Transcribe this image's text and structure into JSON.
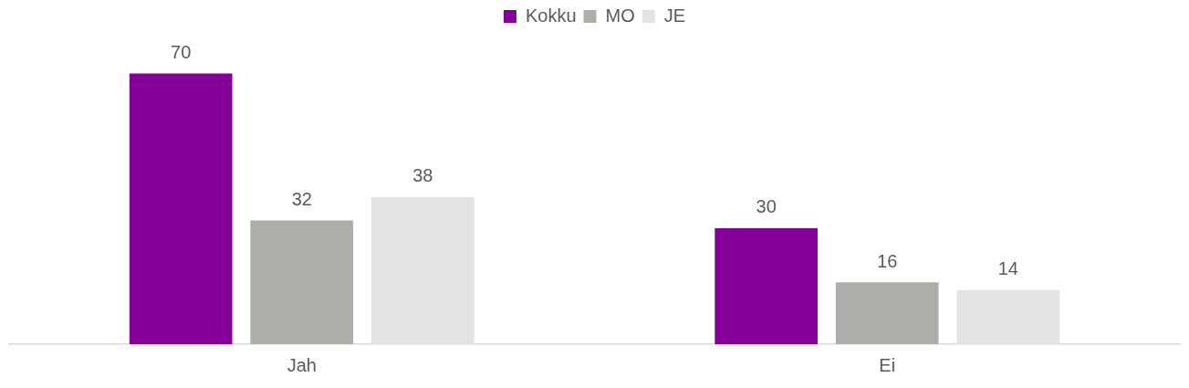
{
  "chart_data": {
    "type": "bar",
    "categories": [
      "Jah",
      "Ei"
    ],
    "series": [
      {
        "name": "Kokku",
        "color": "#850099",
        "values": [
          70,
          30
        ]
      },
      {
        "name": "MO",
        "color": "#adadab",
        "values": [
          32,
          16
        ]
      },
      {
        "name": "JE",
        "color": "#e3e3e3",
        "values": [
          38,
          14
        ]
      }
    ],
    "data_labels": true,
    "legend": "top",
    "grid": false
  }
}
